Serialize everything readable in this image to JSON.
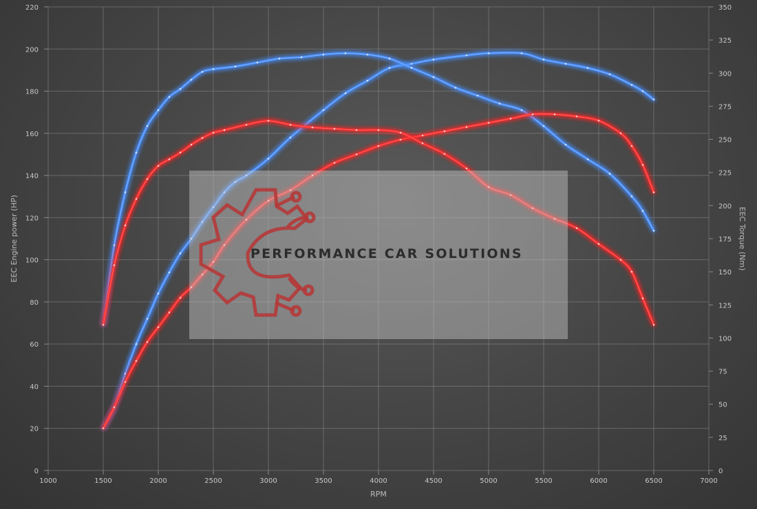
{
  "chart_data": {
    "type": "line",
    "xlabel": "RPM",
    "ylabel": "EEC Engine power (HP)",
    "y2label": "EEC Torque (Nm)",
    "xlim": [
      1000,
      7000
    ],
    "ylim": [
      0,
      220
    ],
    "y2lim": [
      0,
      350
    ],
    "x_ticks": [
      1000,
      1500,
      2000,
      2500,
      3000,
      3500,
      4000,
      4500,
      5000,
      5500,
      6000,
      6500,
      7000
    ],
    "y_ticks": [
      0,
      20,
      40,
      60,
      80,
      100,
      120,
      140,
      160,
      180,
      200,
      220
    ],
    "y2_ticks": [
      0,
      25,
      50,
      75,
      100,
      125,
      150,
      175,
      200,
      225,
      250,
      275,
      300,
      325,
      350
    ],
    "grid": true,
    "series": [
      {
        "axis": "left",
        "color": "#4a90ff",
        "x": [
          1500,
          1600,
          1700,
          1800,
          1900,
          2000,
          2100,
          2200,
          2300,
          2400,
          2500,
          2600,
          2700,
          2800,
          3000,
          3200,
          3500,
          3700,
          3900,
          4100,
          4300,
          4500,
          4800,
          5000,
          5300,
          5500,
          5700,
          5900,
          6100,
          6300,
          6400,
          6500
        ],
        "y": [
          20,
          30,
          46,
          60,
          72,
          84,
          94,
          103,
          110,
          118,
          125,
          132,
          137,
          140,
          148,
          158,
          171,
          179,
          185,
          191,
          193,
          195,
          197,
          198,
          198,
          195,
          193,
          191,
          188,
          183,
          180,
          176
        ]
      },
      {
        "axis": "right",
        "color": "#4a90ff",
        "x": [
          1500,
          1600,
          1700,
          1800,
          1900,
          2000,
          2100,
          2200,
          2300,
          2400,
          2500,
          2700,
          2900,
          3100,
          3300,
          3500,
          3700,
          3900,
          4100,
          4300,
          4500,
          4700,
          4900,
          5100,
          5300,
          5500,
          5700,
          5900,
          6100,
          6300,
          6400,
          6500
        ],
        "y": [
          110,
          170,
          210,
          240,
          260,
          272,
          282,
          288,
          295,
          301,
          303,
          305,
          308,
          311,
          312,
          314,
          315,
          314,
          311,
          304,
          297,
          289,
          283,
          277,
          272,
          260,
          246,
          235,
          224,
          207,
          196,
          181
        ]
      },
      {
        "axis": "left",
        "color": "#ff2a2a",
        "x": [
          1500,
          1600,
          1700,
          1800,
          1900,
          2000,
          2100,
          2200,
          2300,
          2400,
          2500,
          2600,
          2800,
          3000,
          3200,
          3400,
          3600,
          3800,
          4000,
          4200,
          4400,
          4600,
          4800,
          5000,
          5200,
          5400,
          5600,
          5800,
          6000,
          6200,
          6300,
          6400,
          6500
        ],
        "y": [
          20,
          30,
          42,
          52,
          61,
          68,
          75,
          82,
          87,
          93,
          99,
          107,
          119,
          128,
          133,
          140,
          146,
          150,
          154,
          157,
          159,
          161,
          163,
          165,
          167,
          169,
          169,
          168,
          166,
          160,
          154,
          145,
          132
        ]
      },
      {
        "axis": "right",
        "color": "#ff2a2a",
        "x": [
          1500,
          1600,
          1700,
          1800,
          1900,
          2000,
          2100,
          2200,
          2300,
          2400,
          2500,
          2600,
          2800,
          3000,
          3200,
          3400,
          3600,
          3800,
          4000,
          4200,
          4400,
          4600,
          4800,
          5000,
          5200,
          5400,
          5600,
          5800,
          6000,
          6200,
          6300,
          6400,
          6500
        ],
        "y": [
          110,
          155,
          185,
          205,
          220,
          230,
          235,
          240,
          246,
          251,
          255,
          257,
          261,
          264,
          261,
          259,
          258,
          257,
          257,
          255,
          247,
          239,
          228,
          214,
          208,
          198,
          190,
          183,
          171,
          159,
          150,
          130,
          110
        ]
      }
    ]
  },
  "watermark": {
    "text": "PERFORMANCE CAR SOLUTIONS",
    "logo_icon": "gear-circuit-logo-icon",
    "logo_color": "#b53a3a"
  }
}
